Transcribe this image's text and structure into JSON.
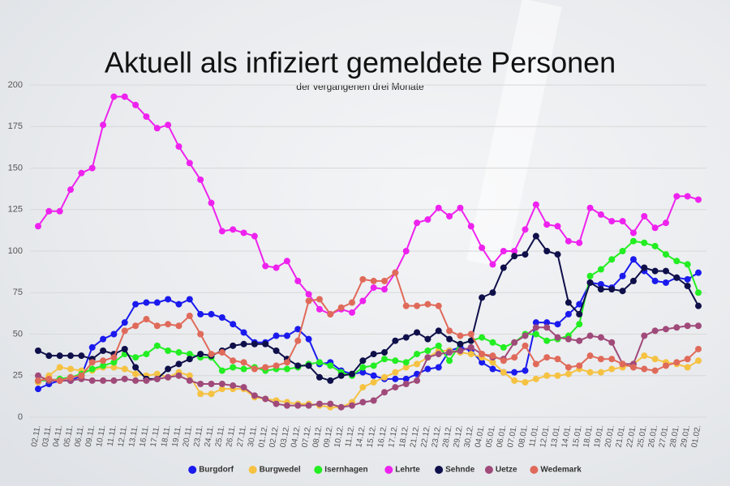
{
  "chart_data": {
    "type": "line",
    "title": "Aktuell als infiziert gemeldete Personen",
    "subtitle": "der vergangenen drei Monate",
    "categories": [
      "02.11.",
      "03.11.",
      "04.11.",
      "05.11.",
      "06.11.",
      "09.11.",
      "10.11.",
      "11.11.",
      "12.11.",
      "13.11.",
      "16.11.",
      "17.11.",
      "18.11.",
      "19.11.",
      "20.11.",
      "23.11.",
      "24.11.",
      "25.11.",
      "26.11.",
      "27.11.",
      "30.11.",
      "01.12.",
      "02.12.",
      "03.12.",
      "04.12.",
      "07.12.",
      "08.12.",
      "09.12.",
      "10.12.",
      "11.12.",
      "14.12.",
      "15.12.",
      "16.12.",
      "17.12.",
      "18.12.",
      "21.12.",
      "22.12.",
      "23.12.",
      "28.12.",
      "29.12.",
      "30.12.",
      "04.01.",
      "05.01.",
      "06.01.",
      "07.01.",
      "08.01.",
      "11.01.",
      "12.01.",
      "13.01.",
      "14.01.",
      "15.01.",
      "18.01.",
      "19.01.",
      "20.01.",
      "21.01.",
      "22.01.",
      "25.01.",
      "26.01.",
      "27.01.",
      "28.01.",
      "29.01.",
      "01.02."
    ],
    "series": [
      {
        "name": "Burgdorf",
        "color": "#1a1aee",
        "values": [
          17,
          20,
          22,
          22,
          25,
          42,
          47,
          50,
          57,
          68,
          69,
          69,
          71,
          68,
          71,
          62,
          62,
          60,
          56,
          51,
          45,
          45,
          49,
          49,
          53,
          47,
          32,
          33,
          28,
          26,
          27,
          25,
          23,
          23,
          23,
          26,
          29,
          30,
          40,
          42,
          40,
          33,
          29,
          27,
          27,
          28,
          57,
          57,
          56,
          62,
          68,
          81,
          80,
          78,
          85,
          95,
          88,
          82,
          81,
          84,
          83,
          87
        ]
      },
      {
        "name": "Burgwedel",
        "color": "#f5c242",
        "values": [
          21,
          25,
          30,
          29,
          28,
          28,
          30,
          30,
          29,
          26,
          25,
          26,
          24,
          27,
          25,
          14,
          14,
          17,
          17,
          17,
          12,
          11,
          10,
          9,
          8,
          8,
          7,
          6,
          6,
          9,
          18,
          21,
          24,
          27,
          30,
          32,
          36,
          40,
          40,
          39,
          38,
          36,
          33,
          27,
          22,
          21,
          23,
          25,
          25,
          26,
          29,
          27,
          27,
          29,
          30,
          32,
          37,
          35,
          33,
          32,
          30,
          34
        ]
      },
      {
        "name": "Isernhagen",
        "color": "#22ee22",
        "values": [
          22,
          22,
          23,
          24,
          26,
          29,
          31,
          33,
          38,
          36,
          38,
          43,
          40,
          39,
          38,
          36,
          36,
          28,
          30,
          29,
          30,
          28,
          29,
          29,
          30,
          32,
          33,
          31,
          27,
          25,
          30,
          31,
          35,
          34,
          33,
          38,
          40,
          43,
          34,
          44,
          46,
          48,
          45,
          42,
          45,
          50,
          50,
          46,
          47,
          49,
          56,
          85,
          89,
          95,
          100,
          106,
          105,
          103,
          98,
          94,
          92,
          75
        ]
      },
      {
        "name": "Lehrte",
        "color": "#ee22ee",
        "values": [
          115,
          124,
          124,
          137,
          147,
          150,
          176,
          193,
          193,
          188,
          181,
          174,
          176,
          163,
          153,
          143,
          129,
          112,
          113,
          111,
          109,
          91,
          90,
          94,
          82,
          74,
          65,
          62,
          65,
          63,
          70,
          78,
          77,
          87,
          100,
          117,
          119,
          126,
          121,
          126,
          115,
          102,
          92,
          100,
          100,
          113,
          128,
          116,
          115,
          106,
          105,
          126,
          122,
          118,
          118,
          111,
          121,
          114,
          117,
          133,
          133,
          131
        ]
      },
      {
        "name": "Sehnde",
        "color": "#0f0f4a",
        "values": [
          40,
          37,
          37,
          37,
          37,
          35,
          40,
          38,
          41,
          30,
          23,
          23,
          29,
          32,
          35,
          38,
          37,
          40,
          43,
          44,
          44,
          44,
          40,
          35,
          31,
          31,
          24,
          22,
          25,
          26,
          34,
          38,
          39,
          46,
          48,
          51,
          47,
          52,
          47,
          44,
          46,
          72,
          75,
          90,
          97,
          98,
          109,
          100,
          98,
          69,
          62,
          81,
          77,
          77,
          76,
          82,
          90,
          88,
          88,
          84,
          79,
          67
        ]
      },
      {
        "name": "Uetze",
        "color": "#a04a7a",
        "values": [
          25,
          22,
          22,
          22,
          23,
          22,
          22,
          22,
          23,
          22,
          22,
          23,
          24,
          25,
          22,
          20,
          20,
          20,
          19,
          18,
          13,
          11,
          8,
          7,
          7,
          7,
          8,
          8,
          6,
          7,
          9,
          10,
          15,
          18,
          20,
          22,
          36,
          38,
          39,
          40,
          42,
          38,
          36,
          35,
          45,
          49,
          54,
          54,
          48,
          47,
          46,
          49,
          48,
          45,
          32,
          32,
          49,
          52,
          53,
          54,
          55,
          55
        ]
      },
      {
        "name": "Wedemark",
        "color": "#e06a5a",
        "values": [
          22,
          23,
          22,
          24,
          25,
          33,
          34,
          36,
          52,
          55,
          59,
          55,
          56,
          55,
          61,
          50,
          38,
          39,
          34,
          33,
          29,
          30,
          31,
          33,
          46,
          70,
          71,
          62,
          66,
          69,
          83,
          82,
          82,
          87,
          67,
          67,
          68,
          67,
          52,
          49,
          50,
          38,
          37,
          34,
          36,
          43,
          32,
          36,
          35,
          30,
          31,
          37,
          35,
          35,
          32,
          30,
          29,
          28,
          31,
          33,
          35,
          41
        ]
      }
    ],
    "ylim": [
      0,
      200
    ],
    "yticks": [
      0,
      25,
      50,
      75,
      100,
      125,
      150,
      175,
      200
    ],
    "grid": true
  }
}
